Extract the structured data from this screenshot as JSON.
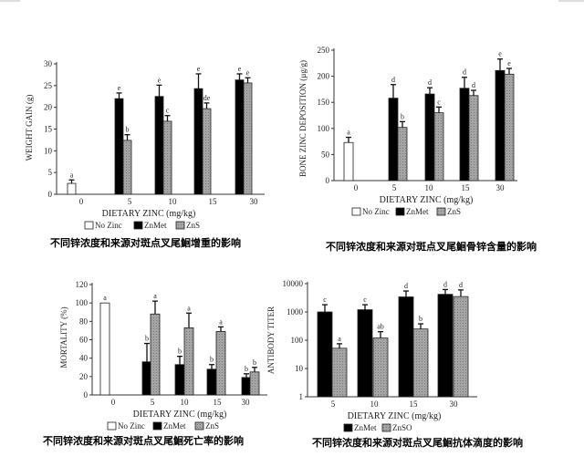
{
  "chart_data": [
    {
      "type": "bar",
      "title": "",
      "caption": "不同锌浓度和来源对斑点叉尾鮰增重的影响",
      "xlabel": "DIETARY ZINC (mg/kg)",
      "ylabel": "WEIGHT GAIN (g)",
      "scale": "linear",
      "ylim": [
        0,
        30
      ],
      "yticks": [
        "0",
        "5",
        "10",
        "15",
        "20",
        "25",
        "30"
      ],
      "ytick_values": [
        0,
        5,
        10,
        15,
        20,
        25,
        30
      ],
      "categories": [
        "0",
        "5",
        "10",
        "15",
        "30"
      ],
      "legend": [
        "No Zinc",
        "ZnMet",
        "ZnS"
      ],
      "series": [
        {
          "name": "No Zinc",
          "values": [
            2.5,
            null,
            null,
            null,
            null
          ],
          "errors": [
            0.8,
            null,
            null,
            null,
            null
          ],
          "letters": [
            "a",
            null,
            null,
            null,
            null
          ]
        },
        {
          "name": "ZnMet",
          "values": [
            null,
            22,
            22.5,
            24.3,
            26.3
          ],
          "errors": [
            null,
            1.3,
            2.6,
            3.4,
            1.4
          ],
          "letters": [
            null,
            "e",
            "e",
            "e",
            "e"
          ]
        },
        {
          "name": "ZnS",
          "values": [
            null,
            12.4,
            16.8,
            19.7,
            25.6
          ],
          "errors": [
            null,
            1.3,
            1.3,
            1.3,
            1.2
          ],
          "letters": [
            null,
            "b",
            "c",
            "de",
            "e"
          ]
        }
      ]
    },
    {
      "type": "bar",
      "title": "",
      "caption": "不同锌浓度和来源对斑点叉尾鮰骨锌含量的影响",
      "xlabel": "DIETARY ZINC (mg/kg)",
      "ylabel": "BONE ZINC DEPOSITION (µg/g)",
      "scale": "linear",
      "ylim": [
        0,
        250
      ],
      "yticks": [
        "0",
        "50",
        "100",
        "150",
        "200",
        "250"
      ],
      "ytick_values": [
        0,
        50,
        100,
        150,
        200,
        250
      ],
      "categories": [
        "0",
        "5",
        "10",
        "15",
        "30"
      ],
      "legend": [
        "No Zinc",
        "ZnMet",
        "ZnS"
      ],
      "series": [
        {
          "name": "No Zinc",
          "values": [
            73,
            null,
            null,
            null,
            null
          ],
          "errors": [
            10,
            null,
            null,
            null,
            null
          ],
          "letters": [
            "a",
            null,
            null,
            null,
            null
          ]
        },
        {
          "name": "ZnMet",
          "values": [
            null,
            158,
            166,
            177,
            211
          ],
          "errors": [
            null,
            26,
            12,
            21,
            22
          ],
          "letters": [
            null,
            "d",
            "d",
            "d",
            "e"
          ]
        },
        {
          "name": "ZnS",
          "values": [
            null,
            102,
            130,
            163,
            204
          ],
          "errors": [
            null,
            11,
            11,
            10,
            11
          ],
          "letters": [
            null,
            "b",
            "c",
            "d",
            "e"
          ]
        }
      ]
    },
    {
      "type": "bar",
      "title": "",
      "caption": "不同锌浓度和来源对斑点叉尾鮰死亡率的影响",
      "xlabel": "DIETARY ZINC (mg/kg)",
      "ylabel": "MORTALITY (%)",
      "scale": "linear",
      "ylim": [
        0,
        120
      ],
      "yticks": [
        "0",
        "20",
        "40",
        "60",
        "80",
        "100",
        "120"
      ],
      "ytick_values": [
        0,
        20,
        40,
        60,
        80,
        100,
        120
      ],
      "categories": [
        "0",
        "5",
        "10",
        "15",
        "30"
      ],
      "legend": [
        "No Zinc",
        "ZnMet",
        "ZnS"
      ],
      "series": [
        {
          "name": "No Zinc",
          "values": [
            100,
            null,
            null,
            null,
            null
          ],
          "errors": [
            0,
            null,
            null,
            null,
            null
          ],
          "letters": [
            "a",
            null,
            null,
            null,
            null
          ]
        },
        {
          "name": "ZnMet",
          "values": [
            null,
            36,
            33,
            28,
            19
          ],
          "errors": [
            null,
            20,
            9,
            5,
            4
          ],
          "letters": [
            null,
            "b",
            "b",
            "b",
            "b"
          ]
        },
        {
          "name": "ZnS",
          "values": [
            null,
            88,
            73,
            69,
            25
          ],
          "errors": [
            null,
            14,
            16,
            5,
            5
          ],
          "letters": [
            null,
            "a",
            "a",
            "a",
            "b"
          ]
        }
      ]
    },
    {
      "type": "bar",
      "title": "",
      "caption": "不同锌浓度和来源对斑点叉尾鮰抗体滴度的影响",
      "xlabel": "DIETARY ZINC (mg/kg)",
      "ylabel": "ANTIBODY TITER",
      "scale": "log",
      "ylim": [
        1,
        10000
      ],
      "yticks": [
        "1",
        "10",
        "100",
        "1000",
        "10000"
      ],
      "ytick_values": [
        1,
        10,
        100,
        1000,
        10000
      ],
      "categories": [
        "5",
        "10",
        "15",
        "30"
      ],
      "legend": [
        "ZnMet",
        "ZnSO"
      ],
      "series": [
        {
          "name": "ZnMet",
          "values": [
            1000,
            1200,
            3400,
            4200
          ],
          "error_tops": [
            1800,
            1800,
            5500,
            6200
          ],
          "letters": [
            "c",
            "c",
            "d",
            "d"
          ]
        },
        {
          "name": "ZnSO",
          "values": [
            52,
            120,
            250,
            3500
          ],
          "error_tops": [
            75,
            200,
            380,
            6000
          ],
          "letters": [
            "a",
            "ab",
            "b",
            "d"
          ]
        }
      ]
    }
  ],
  "colors": {
    "no_zinc": "#ffffff",
    "znmet": "#000000",
    "zns": "#9a9a9a",
    "axis": "#333333"
  }
}
